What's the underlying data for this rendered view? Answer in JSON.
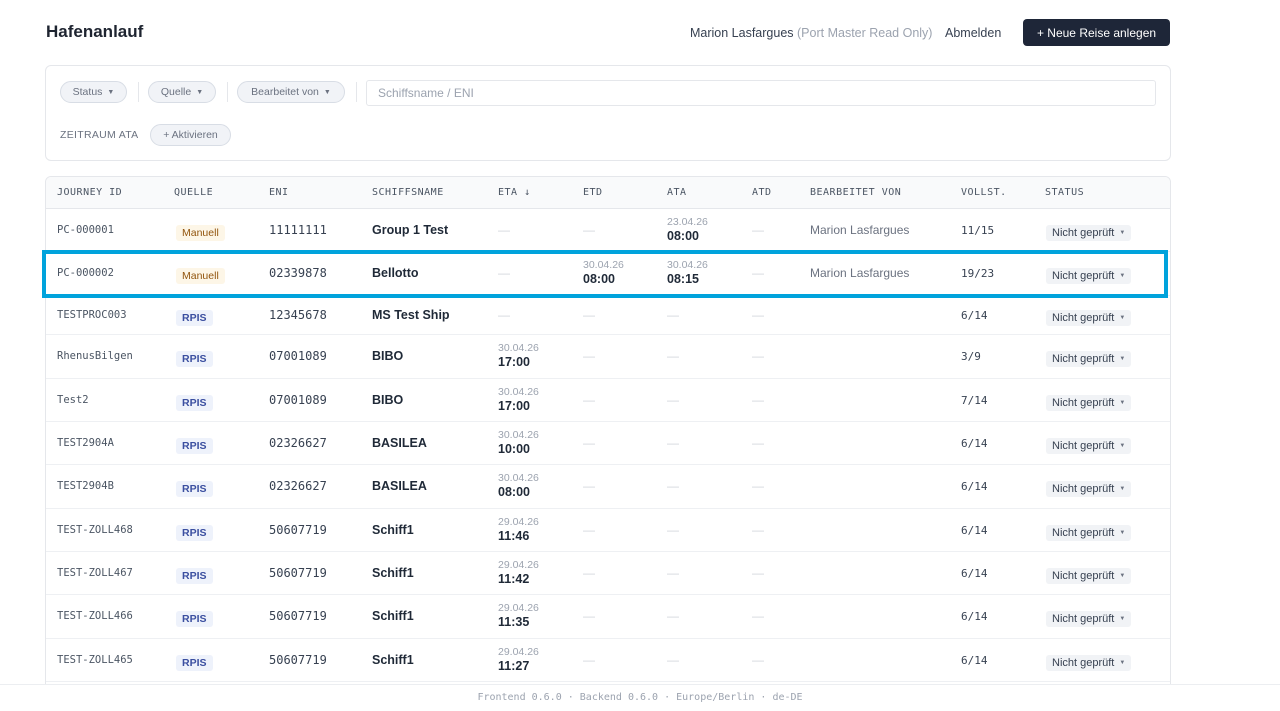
{
  "header": {
    "title": "Hafenanlauf",
    "user_name": "Marion Lasfargues",
    "user_role": "(Port Master Read Only)",
    "logout_label": "Abmelden",
    "new_trip_label": "+ Neue Reise anlegen"
  },
  "filters": {
    "status_label": "Status",
    "source_label": "Quelle",
    "edited_by_label": "Bearbeitet von",
    "search_placeholder": "Schiffsname / ENI",
    "range_label": "ZEITRAUM ATA",
    "activate_label": "+ Aktivieren"
  },
  "table": {
    "columns": [
      "JOURNEY ID",
      "QUELLE",
      "ENI",
      "SCHIFFSNAME",
      "ETA ↓",
      "ETD",
      "ATA",
      "ATD",
      "BEARBEITET VON",
      "VOLLST.",
      "STATUS"
    ],
    "rows": [
      {
        "id": "PC-000001",
        "source": "Manuell",
        "eni": "11111111",
        "name": "Group 1 Test",
        "eta_date": "",
        "eta_time": "",
        "etd_date": "",
        "etd_time": "",
        "ata_date": "23.04.26",
        "ata_time": "08:00",
        "atd": "—",
        "editor": "Marion Lasfargues",
        "complete": "11/15",
        "status": "Nicht geprüft"
      },
      {
        "id": "PC-000002",
        "source": "Manuell",
        "eni": "02339878",
        "name": "Bellotto",
        "eta_date": "",
        "eta_time": "",
        "etd_date": "30.04.26",
        "etd_time": "08:00",
        "ata_date": "30.04.26",
        "ata_time": "08:15",
        "atd": "—",
        "editor": "Marion Lasfargues",
        "complete": "19/23",
        "status": "Nicht geprüft"
      },
      {
        "id": "TESTPROC003",
        "source": "RPIS",
        "eni": "12345678",
        "name": "MS Test Ship",
        "eta_date": "",
        "eta_time": "",
        "etd_date": "",
        "etd_time": "",
        "ata_date": "",
        "ata_time": "",
        "atd": "—",
        "editor": "",
        "complete": "6/14",
        "status": "Nicht geprüft"
      },
      {
        "id": "RhenusBilgen",
        "source": "RPIS",
        "eni": "07001089",
        "name": "BIBO",
        "eta_date": "30.04.26",
        "eta_time": "17:00",
        "etd_date": "",
        "etd_time": "",
        "ata_date": "",
        "ata_time": "",
        "atd": "—",
        "editor": "",
        "complete": "3/9",
        "status": "Nicht geprüft"
      },
      {
        "id": "Test2",
        "source": "RPIS",
        "eni": "07001089",
        "name": "BIBO",
        "eta_date": "30.04.26",
        "eta_time": "17:00",
        "etd_date": "",
        "etd_time": "",
        "ata_date": "",
        "ata_time": "",
        "atd": "—",
        "editor": "",
        "complete": "7/14",
        "status": "Nicht geprüft"
      },
      {
        "id": "TEST2904A",
        "source": "RPIS",
        "eni": "02326627",
        "name": "BASILEA",
        "eta_date": "30.04.26",
        "eta_time": "10:00",
        "etd_date": "",
        "etd_time": "",
        "ata_date": "",
        "ata_time": "",
        "atd": "—",
        "editor": "",
        "complete": "6/14",
        "status": "Nicht geprüft"
      },
      {
        "id": "TEST2904B",
        "source": "RPIS",
        "eni": "02326627",
        "name": "BASILEA",
        "eta_date": "30.04.26",
        "eta_time": "08:00",
        "etd_date": "",
        "etd_time": "",
        "ata_date": "",
        "ata_time": "",
        "atd": "—",
        "editor": "",
        "complete": "6/14",
        "status": "Nicht geprüft"
      },
      {
        "id": "TEST-ZOLL468",
        "source": "RPIS",
        "eni": "50607719",
        "name": "Schiff1",
        "eta_date": "29.04.26",
        "eta_time": "11:46",
        "etd_date": "",
        "etd_time": "",
        "ata_date": "",
        "ata_time": "",
        "atd": "—",
        "editor": "",
        "complete": "6/14",
        "status": "Nicht geprüft"
      },
      {
        "id": "TEST-ZOLL467",
        "source": "RPIS",
        "eni": "50607719",
        "name": "Schiff1",
        "eta_date": "29.04.26",
        "eta_time": "11:42",
        "etd_date": "",
        "etd_time": "",
        "ata_date": "",
        "ata_time": "",
        "atd": "—",
        "editor": "",
        "complete": "6/14",
        "status": "Nicht geprüft"
      },
      {
        "id": "TEST-ZOLL466",
        "source": "RPIS",
        "eni": "50607719",
        "name": "Schiff1",
        "eta_date": "29.04.26",
        "eta_time": "11:35",
        "etd_date": "",
        "etd_time": "",
        "ata_date": "",
        "ata_time": "",
        "atd": "—",
        "editor": "",
        "complete": "6/14",
        "status": "Nicht geprüft"
      },
      {
        "id": "TEST-ZOLL465",
        "source": "RPIS",
        "eni": "50607719",
        "name": "Schiff1",
        "eta_date": "29.04.26",
        "eta_time": "11:27",
        "etd_date": "",
        "etd_time": "",
        "ata_date": "",
        "ata_time": "",
        "atd": "—",
        "editor": "",
        "complete": "6/14",
        "status": "Nicht geprüft"
      }
    ]
  },
  "empty_placeholder": "—",
  "footer": {
    "text": "Frontend 0.6.0 · Backend 0.6.0 · Europe/Berlin · de-DE"
  },
  "colors": {
    "accent": "#1e2638",
    "highlight": "#00a3dc"
  }
}
